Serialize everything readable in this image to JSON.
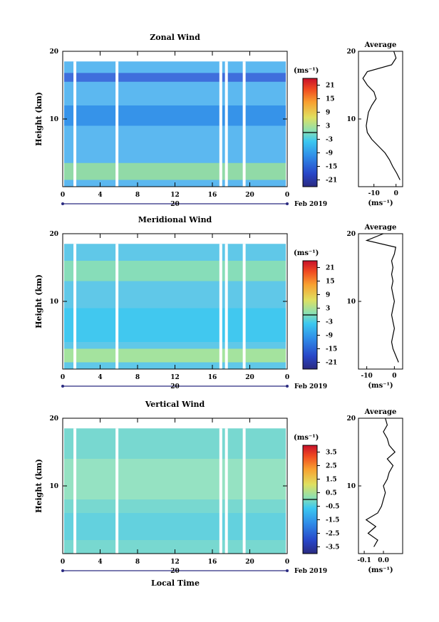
{
  "figure": {
    "date_label": "Feb 2019",
    "xlabel_bottom": "Local Time",
    "day_label": "20",
    "average_title": "Average",
    "unit_label": "(ms⁻¹)"
  },
  "chart_data": [
    {
      "type": "heatmap",
      "title": "Zonal Wind",
      "ylabel": "Height (km)",
      "xlabel": "",
      "x_ticks": [
        "0",
        "4",
        "8",
        "12",
        "16",
        "20",
        "0"
      ],
      "xlim": [
        0,
        24
      ],
      "y_ticks": [
        "20",
        "10"
      ],
      "ylim": [
        0,
        20
      ],
      "colorbar": {
        "unit": "(ms⁻¹)",
        "ticks": [
          "21",
          "15",
          "9",
          "3",
          "-3",
          "-9",
          "-15",
          "-21"
        ],
        "range": [
          -24,
          24
        ]
      },
      "profile": {
        "title": "Average",
        "x_ticks": [
          "-10",
          "0"
        ],
        "xlim": [
          -17,
          3
        ],
        "y_ticks": [
          "20",
          "10"
        ],
        "xlabel": "(ms⁻¹)",
        "points": [
          [
            1.8,
            1
          ],
          [
            0.3,
            2
          ],
          [
            -1.5,
            3
          ],
          [
            -3,
            4
          ],
          [
            -5,
            5
          ],
          [
            -8,
            6
          ],
          [
            -11,
            7
          ],
          [
            -13,
            8
          ],
          [
            -13.5,
            9
          ],
          [
            -13,
            10
          ],
          [
            -12.5,
            11
          ],
          [
            -11,
            12
          ],
          [
            -9,
            13
          ],
          [
            -10,
            14
          ],
          [
            -13,
            15
          ],
          [
            -15,
            16
          ],
          [
            -13,
            17
          ],
          [
            -2,
            18
          ],
          [
            0,
            19
          ],
          [
            -1,
            20
          ]
        ]
      },
      "background": "#5cb8f0"
    },
    {
      "type": "heatmap",
      "title": "Meridional Wind",
      "ylabel": "Height (km)",
      "xlabel": "",
      "x_ticks": [
        "0",
        "4",
        "8",
        "12",
        "16",
        "20",
        "0"
      ],
      "xlim": [
        0,
        24
      ],
      "y_ticks": [
        "20",
        "10"
      ],
      "ylim": [
        0,
        20
      ],
      "colorbar": {
        "unit": "(ms⁻¹)",
        "ticks": [
          "21",
          "15",
          "9",
          "3",
          "-3",
          "-9",
          "-15",
          "-21"
        ],
        "range": [
          -24,
          24
        ]
      },
      "profile": {
        "title": "Average",
        "x_ticks": [
          "-10",
          "0"
        ],
        "xlim": [
          -13,
          3
        ],
        "y_ticks": [
          "20",
          "10"
        ],
        "xlabel": "(ms⁻¹)",
        "points": [
          [
            1.5,
            1
          ],
          [
            0.5,
            2
          ],
          [
            -0.5,
            3
          ],
          [
            -1,
            4
          ],
          [
            -0.5,
            5
          ],
          [
            0,
            6
          ],
          [
            -0.5,
            7
          ],
          [
            -1,
            8
          ],
          [
            -0.5,
            9
          ],
          [
            0,
            10
          ],
          [
            -0.5,
            11
          ],
          [
            -1,
            12
          ],
          [
            -0.5,
            13
          ],
          [
            -1,
            14
          ],
          [
            -0.5,
            15
          ],
          [
            -1,
            16
          ],
          [
            0,
            17
          ],
          [
            0.5,
            18
          ],
          [
            -10,
            19
          ],
          [
            -4,
            20
          ]
        ]
      },
      "background": "#60c8e8"
    },
    {
      "type": "heatmap",
      "title": "Vertical Wind",
      "ylabel": "Height (km)",
      "xlabel": "Local Time",
      "x_ticks": [
        "0",
        "4",
        "8",
        "12",
        "16",
        "20",
        "0"
      ],
      "xlim": [
        0,
        24
      ],
      "y_ticks": [
        "20",
        "10"
      ],
      "ylim": [
        0,
        20
      ],
      "colorbar": {
        "unit": "(ms⁻¹)",
        "ticks": [
          "3.5",
          "2.5",
          "1.5",
          "0.5",
          "-0.5",
          "-1.5",
          "-2.5",
          "-3.5"
        ],
        "range": [
          -4,
          4
        ]
      },
      "profile": {
        "title": "Average",
        "x_ticks": [
          "-0.1",
          "0.0"
        ],
        "xlim": [
          -0.13,
          0.1
        ],
        "y_ticks": [
          "20",
          "10"
        ],
        "xlabel": "(ms⁻¹)",
        "points": [
          [
            -0.05,
            1
          ],
          [
            -0.03,
            2
          ],
          [
            -0.08,
            3
          ],
          [
            -0.04,
            4
          ],
          [
            -0.09,
            5
          ],
          [
            -0.03,
            6
          ],
          [
            -0.01,
            7
          ],
          [
            0.0,
            8
          ],
          [
            0.01,
            9
          ],
          [
            0.0,
            10
          ],
          [
            0.02,
            11
          ],
          [
            0.03,
            12
          ],
          [
            0.05,
            13
          ],
          [
            0.02,
            14
          ],
          [
            0.06,
            15
          ],
          [
            0.03,
            16
          ],
          [
            0.02,
            17
          ],
          [
            0.0,
            18
          ],
          [
            0.02,
            19
          ],
          [
            0.01,
            20
          ]
        ]
      },
      "background": "#78d8d0"
    }
  ]
}
